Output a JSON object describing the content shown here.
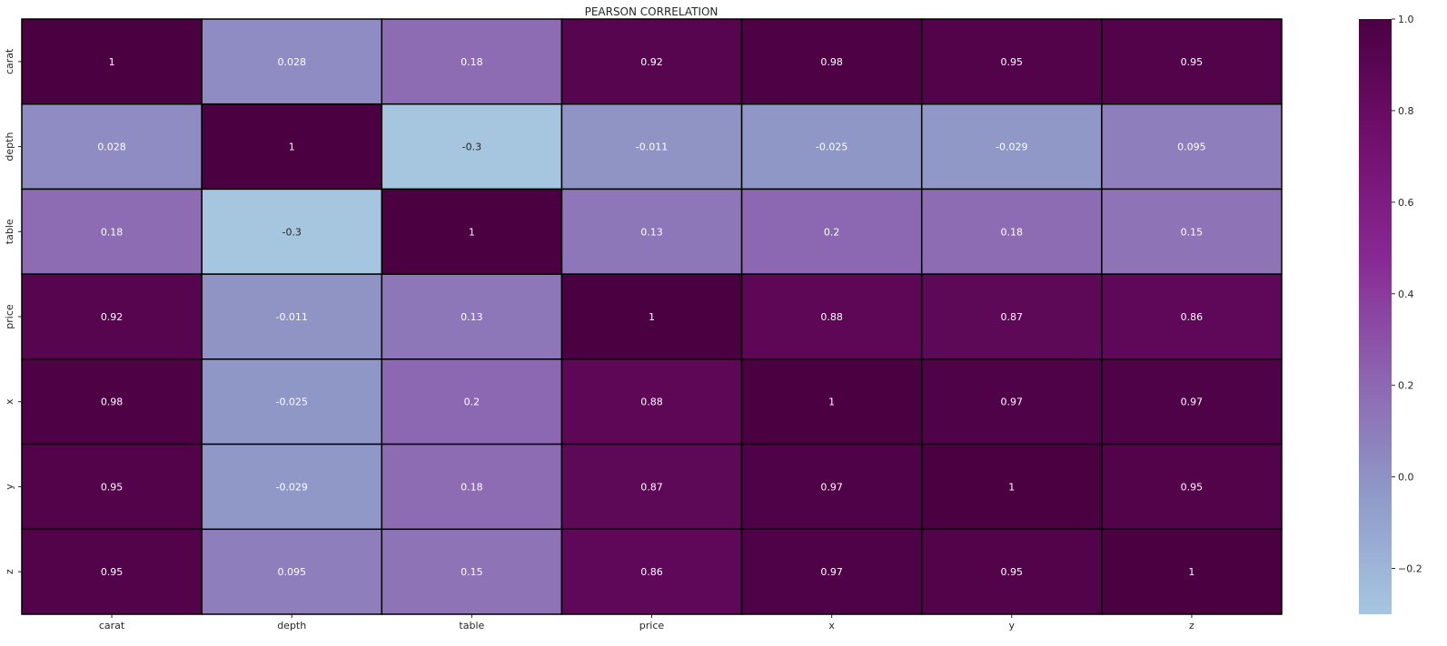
{
  "chart_data": {
    "type": "heatmap",
    "title": "PEARSON CORRELATION",
    "xlabel": "",
    "ylabel": "",
    "x_labels": [
      "carat",
      "depth",
      "table",
      "price",
      "x",
      "y",
      "z"
    ],
    "y_labels": [
      "carat",
      "depth",
      "table",
      "price",
      "x",
      "y",
      "z"
    ],
    "values": [
      [
        1,
        0.028,
        0.18,
        0.92,
        0.98,
        0.95,
        0.95
      ],
      [
        0.028,
        1,
        -0.3,
        -0.011,
        -0.025,
        -0.029,
        0.095
      ],
      [
        0.18,
        -0.3,
        1,
        0.13,
        0.2,
        0.18,
        0.15
      ],
      [
        0.92,
        -0.011,
        0.13,
        1,
        0.88,
        0.87,
        0.86
      ],
      [
        0.98,
        -0.025,
        0.2,
        0.88,
        1,
        0.97,
        0.97
      ],
      [
        0.95,
        -0.029,
        0.18,
        0.87,
        0.97,
        1,
        0.95
      ],
      [
        0.95,
        0.095,
        0.15,
        0.86,
        0.97,
        0.95,
        1
      ]
    ],
    "annotations": [
      [
        "1",
        "0.028",
        "0.18",
        "0.92",
        "0.98",
        "0.95",
        "0.95"
      ],
      [
        "0.028",
        "1",
        "-0.3",
        "-0.011",
        "-0.025",
        "-0.029",
        "0.095"
      ],
      [
        "0.18",
        "-0.3",
        "1",
        "0.13",
        "0.2",
        "0.18",
        "0.15"
      ],
      [
        "0.92",
        "-0.011",
        "0.13",
        "1",
        "0.88",
        "0.87",
        "0.86"
      ],
      [
        "0.98",
        "-0.025",
        "0.2",
        "0.88",
        "1",
        "0.97",
        "0.97"
      ],
      [
        "0.95",
        "-0.029",
        "0.18",
        "0.87",
        "0.97",
        "1",
        "0.95"
      ],
      [
        "0.95",
        "0.095",
        "0.15",
        "0.86",
        "0.97",
        "0.95",
        "1"
      ]
    ],
    "colorbar": {
      "vmin": -0.3,
      "vmax": 1.0,
      "ticks": [
        1.0,
        0.8,
        0.6,
        0.4,
        0.2,
        0.0,
        -0.2
      ],
      "tick_labels": [
        "1.0",
        "0.8",
        "0.6",
        "0.4",
        "0.2",
        "0.0",
        "−0.2"
      ],
      "colormap": "BuPu",
      "color_stops": [
        "#a6c6e0",
        "#8f9ac8",
        "#8d64b0",
        "#882893",
        "#710f6d",
        "#4b0042"
      ]
    },
    "cell_border_color": "#000000",
    "legend": "right"
  }
}
